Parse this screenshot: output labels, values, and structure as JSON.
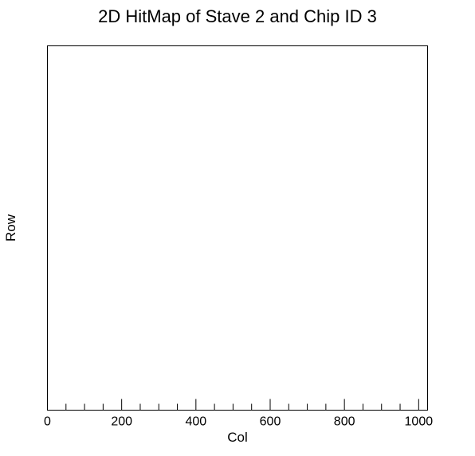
{
  "chart_data": {
    "type": "heatmap",
    "title": "2D HitMap of Stave 2 and Chip ID 3",
    "xlabel": "Col",
    "ylabel": "Row",
    "xlim": [
      0,
      1024
    ],
    "x_major_ticks": [
      0,
      200,
      400,
      600,
      800,
      1000
    ],
    "x_minor_tick_step": 50,
    "x_tick_labels": [
      "0",
      "200",
      "400",
      "600",
      "800",
      "1000"
    ],
    "y_tick_labels": [],
    "grid": false,
    "legend": "none",
    "cells": []
  }
}
